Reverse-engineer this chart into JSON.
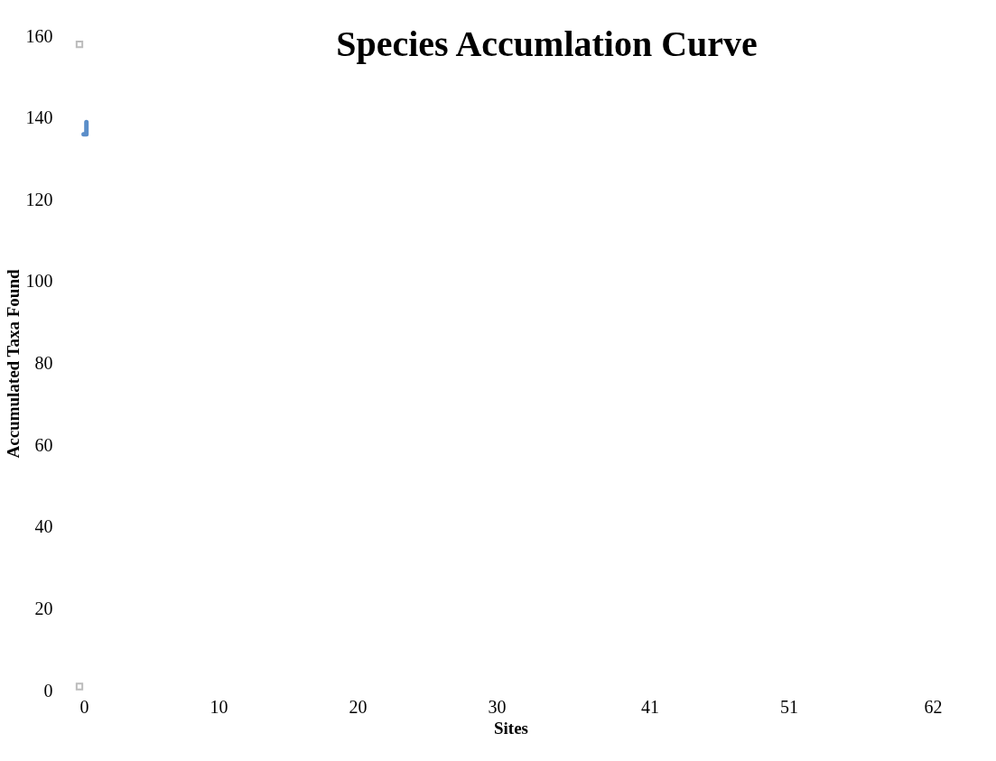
{
  "chart_data": {
    "type": "line",
    "title": "Species Accumlation Curve",
    "xlabel": "Sites",
    "ylabel": "Accumulated Taxa Found",
    "series": [
      {
        "color": "#5b8ec9",
        "x": [
          0.3,
          0.5,
          0.5
        ],
        "values": [
          136,
          136,
          139
        ]
      },
      {
        "type": "scatter",
        "color": "#a0a0a0",
        "marker": "square",
        "x": [
          0,
          0
        ],
        "values": [
          1,
          158
        ]
      }
    ],
    "xlim": [
      0,
      62
    ],
    "xticks": [
      0,
      10,
      20,
      30,
      41,
      51,
      62
    ],
    "ylim": [
      0,
      160
    ],
    "yticks": [
      0,
      20,
      40,
      60,
      80,
      100,
      120,
      140,
      160
    ],
    "grid": false,
    "marker": "none",
    "line_style": "solid"
  }
}
